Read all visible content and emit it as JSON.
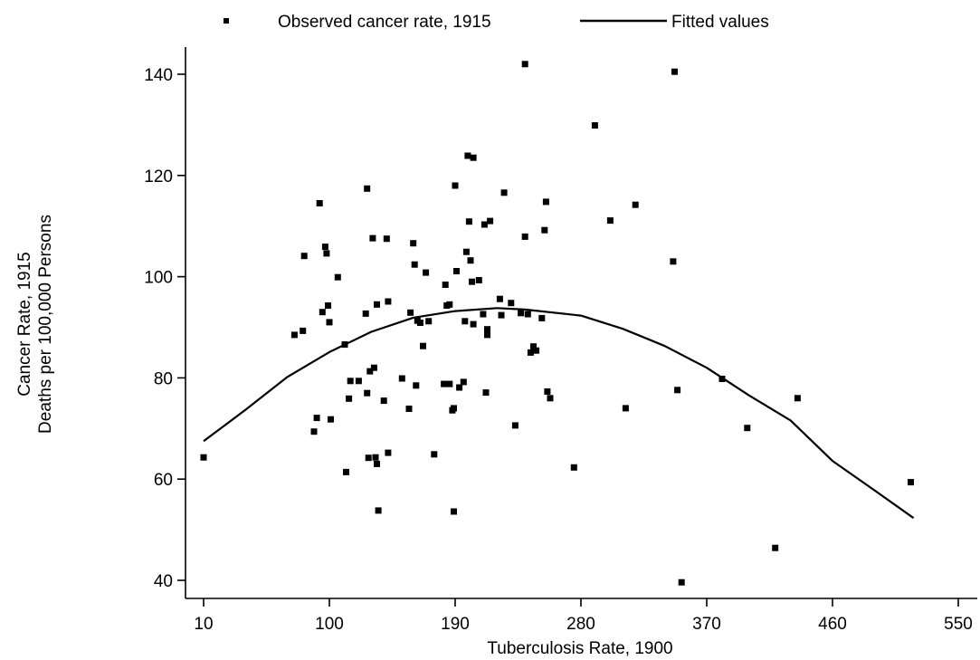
{
  "chart_data": {
    "type": "scatter",
    "xlabel": "Tuberculosis Rate, 1900",
    "ylabel_lines": [
      "Cancer Rate, 1915",
      "Deaths per 100,000 Persons"
    ],
    "xlim": [
      0,
      560
    ],
    "ylim": [
      37,
      146
    ],
    "x_ticks": [
      10,
      100,
      190,
      280,
      370,
      460,
      550
    ],
    "y_ticks": [
      40,
      60,
      80,
      100,
      120,
      140
    ],
    "legend": {
      "position": "top",
      "entries": [
        {
          "label": "Observed cancer rate, 1915",
          "marker": "square"
        },
        {
          "label": "Fitted values",
          "marker": "line"
        }
      ]
    },
    "series": [
      {
        "name": "Observed cancer rate, 1915",
        "kind": "points",
        "color": "#000000",
        "points": [
          [
            10,
            64.3
          ],
          [
            75,
            88.5
          ],
          [
            81,
            89.3
          ],
          [
            82,
            104.1
          ],
          [
            89,
            69.4
          ],
          [
            91,
            72.1
          ],
          [
            93,
            114.5
          ],
          [
            95,
            93.0
          ],
          [
            97,
            105.9
          ],
          [
            98,
            104.6
          ],
          [
            99,
            94.3
          ],
          [
            100,
            91.0
          ],
          [
            101,
            71.8
          ],
          [
            106,
            99.9
          ],
          [
            111,
            86.6
          ],
          [
            112,
            61.4
          ],
          [
            114,
            75.9
          ],
          [
            115,
            79.4
          ],
          [
            121,
            79.4
          ],
          [
            126,
            92.7
          ],
          [
            127,
            77.0
          ],
          [
            127,
            117.4
          ],
          [
            128,
            64.2
          ],
          [
            129,
            81.3
          ],
          [
            131,
            107.6
          ],
          [
            132,
            82.0
          ],
          [
            133,
            64.3
          ],
          [
            134,
            63.0
          ],
          [
            134,
            94.5
          ],
          [
            135,
            53.8
          ],
          [
            139,
            75.5
          ],
          [
            141,
            107.5
          ],
          [
            142,
            95.1
          ],
          [
            142,
            65.2
          ],
          [
            152,
            79.9
          ],
          [
            157,
            73.9
          ],
          [
            158,
            92.9
          ],
          [
            160,
            106.6
          ],
          [
            161,
            102.4
          ],
          [
            162,
            78.5
          ],
          [
            163,
            91.3
          ],
          [
            165,
            90.9
          ],
          [
            167,
            86.3
          ],
          [
            169,
            100.8
          ],
          [
            171,
            91.2
          ],
          [
            175,
            64.9
          ],
          [
            182,
            78.8
          ],
          [
            183,
            98.4
          ],
          [
            184,
            94.3
          ],
          [
            186,
            94.5
          ],
          [
            186,
            78.8
          ],
          [
            188,
            73.6
          ],
          [
            189,
            74.0
          ],
          [
            189,
            53.6
          ],
          [
            190,
            118.0
          ],
          [
            191,
            101.1
          ],
          [
            193,
            78.1
          ],
          [
            196,
            79.2
          ],
          [
            197,
            91.2
          ],
          [
            198,
            104.9
          ],
          [
            199,
            123.9
          ],
          [
            200,
            110.9
          ],
          [
            201,
            103.2
          ],
          [
            202,
            99.0
          ],
          [
            203,
            123.5
          ],
          [
            203,
            90.6
          ],
          [
            207,
            99.3
          ],
          [
            210,
            92.6
          ],
          [
            211,
            110.3
          ],
          [
            212,
            77.1
          ],
          [
            213,
            89.6
          ],
          [
            213,
            88.5
          ],
          [
            215,
            111.0
          ],
          [
            222,
            95.6
          ],
          [
            223,
            92.4
          ],
          [
            225,
            116.6
          ],
          [
            230,
            94.8
          ],
          [
            233,
            70.6
          ],
          [
            237,
            92.8
          ],
          [
            240,
            142.0
          ],
          [
            240,
            107.9
          ],
          [
            242,
            92.6
          ],
          [
            244,
            85.0
          ],
          [
            246,
            86.2
          ],
          [
            248,
            85.4
          ],
          [
            252,
            91.8
          ],
          [
            254,
            109.2
          ],
          [
            255,
            114.8
          ],
          [
            256,
            77.3
          ],
          [
            258,
            76.0
          ],
          [
            275,
            62.3
          ],
          [
            290,
            129.9
          ],
          [
            301,
            111.1
          ],
          [
            312,
            74.0
          ],
          [
            319,
            114.2
          ],
          [
            346,
            103.0
          ],
          [
            347,
            140.5
          ],
          [
            349,
            77.6
          ],
          [
            352,
            39.6
          ],
          [
            381,
            79.8
          ],
          [
            399,
            70.1
          ],
          [
            419,
            46.4
          ],
          [
            435,
            76.0
          ],
          [
            516,
            59.4
          ]
        ]
      },
      {
        "name": "Fitted values",
        "kind": "line",
        "color": "#000000",
        "points": [
          [
            10,
            67.5
          ],
          [
            40,
            73.7
          ],
          [
            70,
            80.2
          ],
          [
            100,
            85.1
          ],
          [
            130,
            89.1
          ],
          [
            160,
            91.9
          ],
          [
            190,
            93.2
          ],
          [
            220,
            93.8
          ],
          [
            240,
            93.5
          ],
          [
            280,
            92.3
          ],
          [
            310,
            89.7
          ],
          [
            340,
            86.3
          ],
          [
            370,
            82.0
          ],
          [
            400,
            76.6
          ],
          [
            430,
            71.6
          ],
          [
            460,
            63.6
          ],
          [
            490,
            57.8
          ],
          [
            518,
            52.3
          ]
        ]
      }
    ]
  }
}
